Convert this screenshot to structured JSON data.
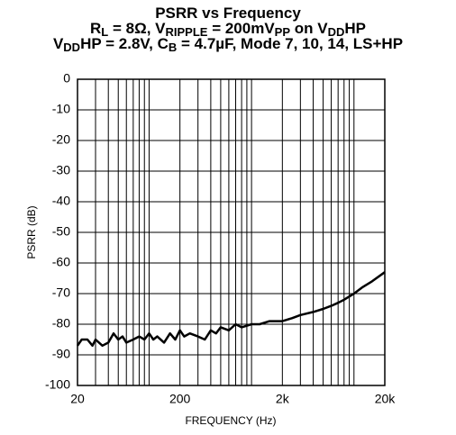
{
  "chart_data": {
    "type": "line",
    "title": [
      [
        {
          "text": "PSRR vs Frequency"
        }
      ],
      [
        {
          "text": "R"
        },
        {
          "text": "L",
          "subscript": true
        },
        {
          "text": " = 8Ω, V"
        },
        {
          "text": "RIPPLE",
          "subscript": true
        },
        {
          "text": " = 200mV"
        },
        {
          "text": "PP",
          "subscript": true
        },
        {
          "text": " on V"
        },
        {
          "text": "DD",
          "subscript": true
        },
        {
          "text": "HP"
        }
      ],
      [
        {
          "text": "V"
        },
        {
          "text": "DD",
          "subscript": true
        },
        {
          "text": "HP = 2.8V, C"
        },
        {
          "text": "B",
          "subscript": true
        },
        {
          "text": " = 4.7µF, Mode 7, 10, 14, LS+HP"
        }
      ]
    ],
    "xlabel": "FREQUENCY (Hz)",
    "ylabel": "PSRR (dB)",
    "xscale": "log",
    "xlim": [
      20,
      20000
    ],
    "ylim": [
      -100,
      0
    ],
    "xticks": [
      20,
      200,
      {
        "value": 2000,
        "label": "2k"
      },
      {
        "value": 20000,
        "label": "20k"
      }
    ],
    "xgrid_minor": [
      30,
      40,
      50,
      60,
      70,
      80,
      90,
      100,
      300,
      400,
      500,
      600,
      700,
      800,
      900,
      1000,
      3000,
      4000,
      5000,
      6000,
      7000,
      8000,
      9000,
      10000
    ],
    "yticks": [
      0,
      -10,
      -20,
      -30,
      -40,
      -50,
      -60,
      -70,
      -80,
      -90,
      -100
    ],
    "grid": true,
    "color": "#000000",
    "x": [
      20,
      22,
      25,
      28,
      30,
      35,
      40,
      45,
      50,
      55,
      60,
      70,
      80,
      90,
      100,
      110,
      120,
      140,
      160,
      180,
      200,
      220,
      250,
      300,
      350,
      400,
      450,
      500,
      600,
      700,
      800,
      1000,
      1200,
      1500,
      2000,
      2500,
      3000,
      4000,
      5000,
      6000,
      7000,
      8000,
      10000,
      12000,
      15000,
      20000
    ],
    "values": [
      -87,
      -85,
      -85,
      -87,
      -85,
      -87,
      -86,
      -83,
      -85,
      -84,
      -86,
      -85,
      -84,
      -85,
      -83,
      -85,
      -84,
      -86,
      -83,
      -85,
      -82,
      -84,
      -83,
      -84,
      -85,
      -82,
      -83,
      -81,
      -82,
      -80,
      -81,
      -80,
      -80,
      -79,
      -79,
      -78,
      -77,
      -76,
      -75,
      -74,
      -73,
      -72,
      -70,
      -68,
      -66,
      -63
    ]
  }
}
